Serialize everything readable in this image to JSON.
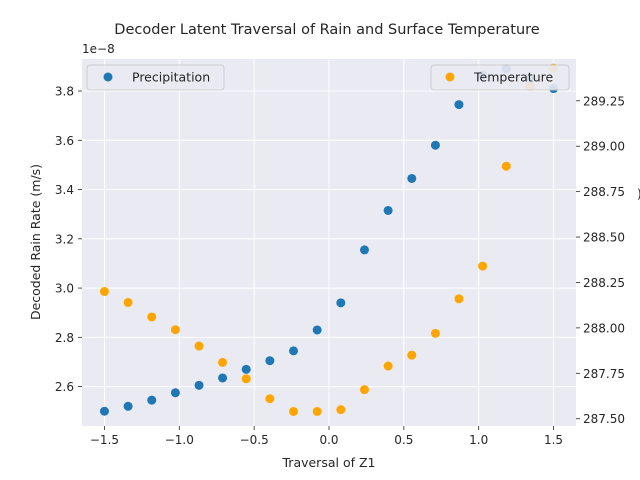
{
  "chart_data": {
    "type": "scatter",
    "title": "Decoder Latent Traversal of Rain and Surface Temperature",
    "xlabel": "Traversal of Z1",
    "ylabel_left": "Decoded Rain Rate (m/s)",
    "ylabel_right_fragment": ")",
    "left_offset_label": "1e−8",
    "xlim": [
      -1.65,
      1.65
    ],
    "ylim_left": [
      2.44,
      3.93
    ],
    "ylim_right": [
      287.46,
      289.48
    ],
    "x_ticks": [
      -1.5,
      -1.0,
      -0.5,
      0.0,
      0.5,
      1.0,
      1.5
    ],
    "x_tick_labels": [
      "−1.5",
      "−1.0",
      "−0.5",
      "0.0",
      "0.5",
      "1.0",
      "1.5"
    ],
    "y_left_ticks": [
      2.6,
      2.8,
      3.0,
      3.2,
      3.4,
      3.6,
      3.8
    ],
    "y_left_tick_labels": [
      "2.6",
      "2.8",
      "3.0",
      "3.2",
      "3.4",
      "3.6",
      "3.8"
    ],
    "y_right_ticks": [
      287.5,
      287.75,
      288.0,
      288.25,
      288.5,
      288.75,
      289.0,
      289.25
    ],
    "y_right_tick_labels": [
      "287.50",
      "287.75",
      "288.00",
      "288.25",
      "288.50",
      "288.75",
      "289.00",
      "289.25"
    ],
    "grid": true,
    "series": [
      {
        "name": "Precipitation",
        "axis": "left",
        "color": "#1f77b4",
        "legend_position": "top-left",
        "x": [
          -1.5,
          -1.342,
          -1.184,
          -1.026,
          -0.868,
          -0.711,
          -0.553,
          -0.395,
          -0.237,
          -0.079,
          0.079,
          0.237,
          0.395,
          0.553,
          0.711,
          0.868,
          1.026,
          1.184,
          1.342,
          1.5
        ],
        "y": [
          2.5,
          2.52,
          2.545,
          2.575,
          2.605,
          2.635,
          2.67,
          2.705,
          2.745,
          2.83,
          2.94,
          3.155,
          3.315,
          3.445,
          3.58,
          3.745,
          3.865,
          3.89,
          3.855,
          3.81
        ]
      },
      {
        "name": "Temperature",
        "axis": "right",
        "color": "#ffa500",
        "legend_position": "top-right",
        "x": [
          -1.5,
          -1.342,
          -1.184,
          -1.026,
          -0.868,
          -0.711,
          -0.553,
          -0.395,
          -0.237,
          -0.079,
          0.079,
          0.237,
          0.395,
          0.553,
          0.711,
          0.868,
          1.026,
          1.184,
          1.342,
          1.5
        ],
        "y": [
          288.2,
          288.14,
          288.06,
          287.99,
          287.9,
          287.81,
          287.72,
          287.61,
          287.54,
          287.54,
          287.55,
          287.66,
          287.79,
          287.85,
          287.97,
          288.16,
          288.34,
          288.89,
          289.33,
          289.43
        ]
      }
    ]
  }
}
